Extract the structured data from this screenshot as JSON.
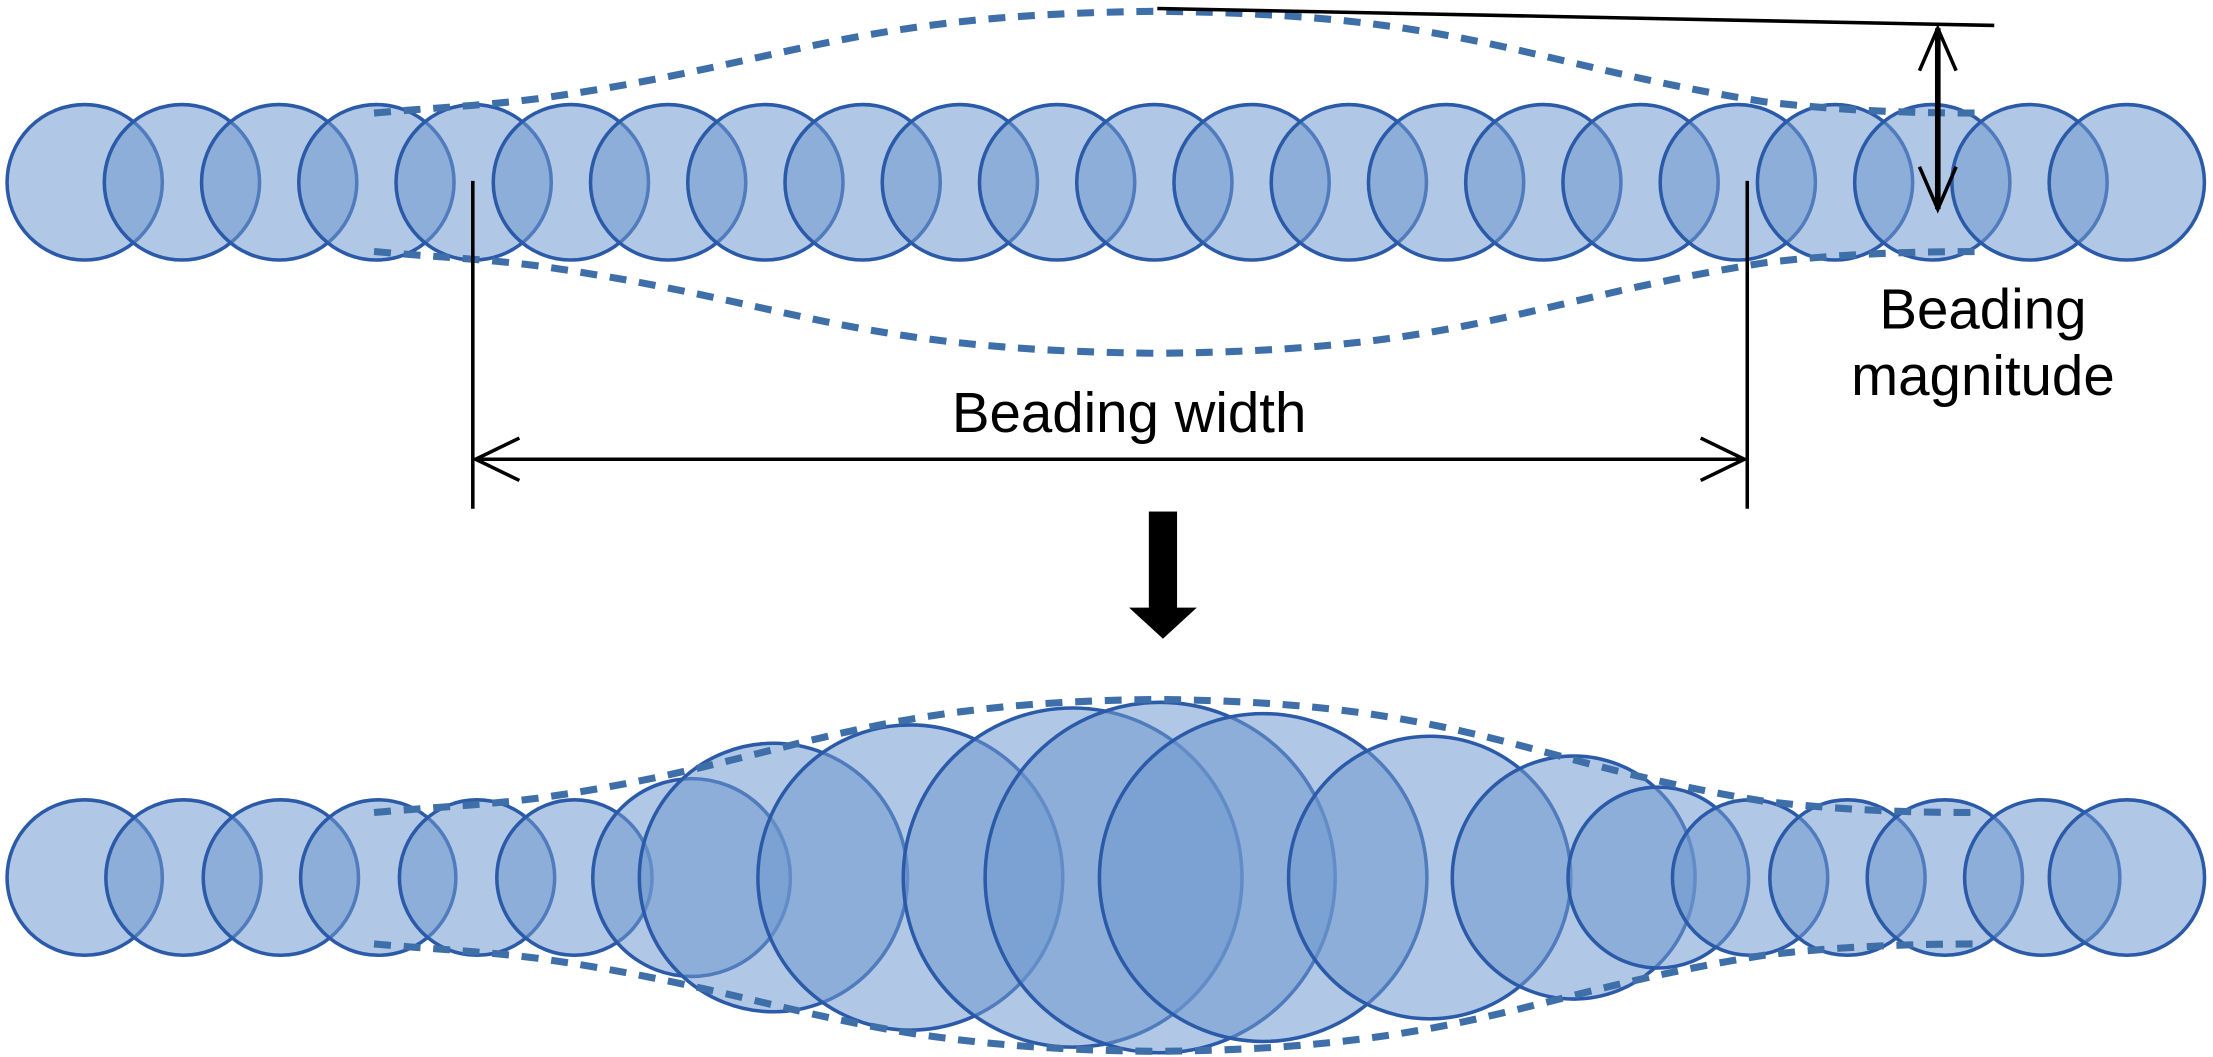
{
  "annotations": {
    "beading_width": "Beading width",
    "beading_magnitude": [
      "Beading",
      "magnitude"
    ]
  }
}
